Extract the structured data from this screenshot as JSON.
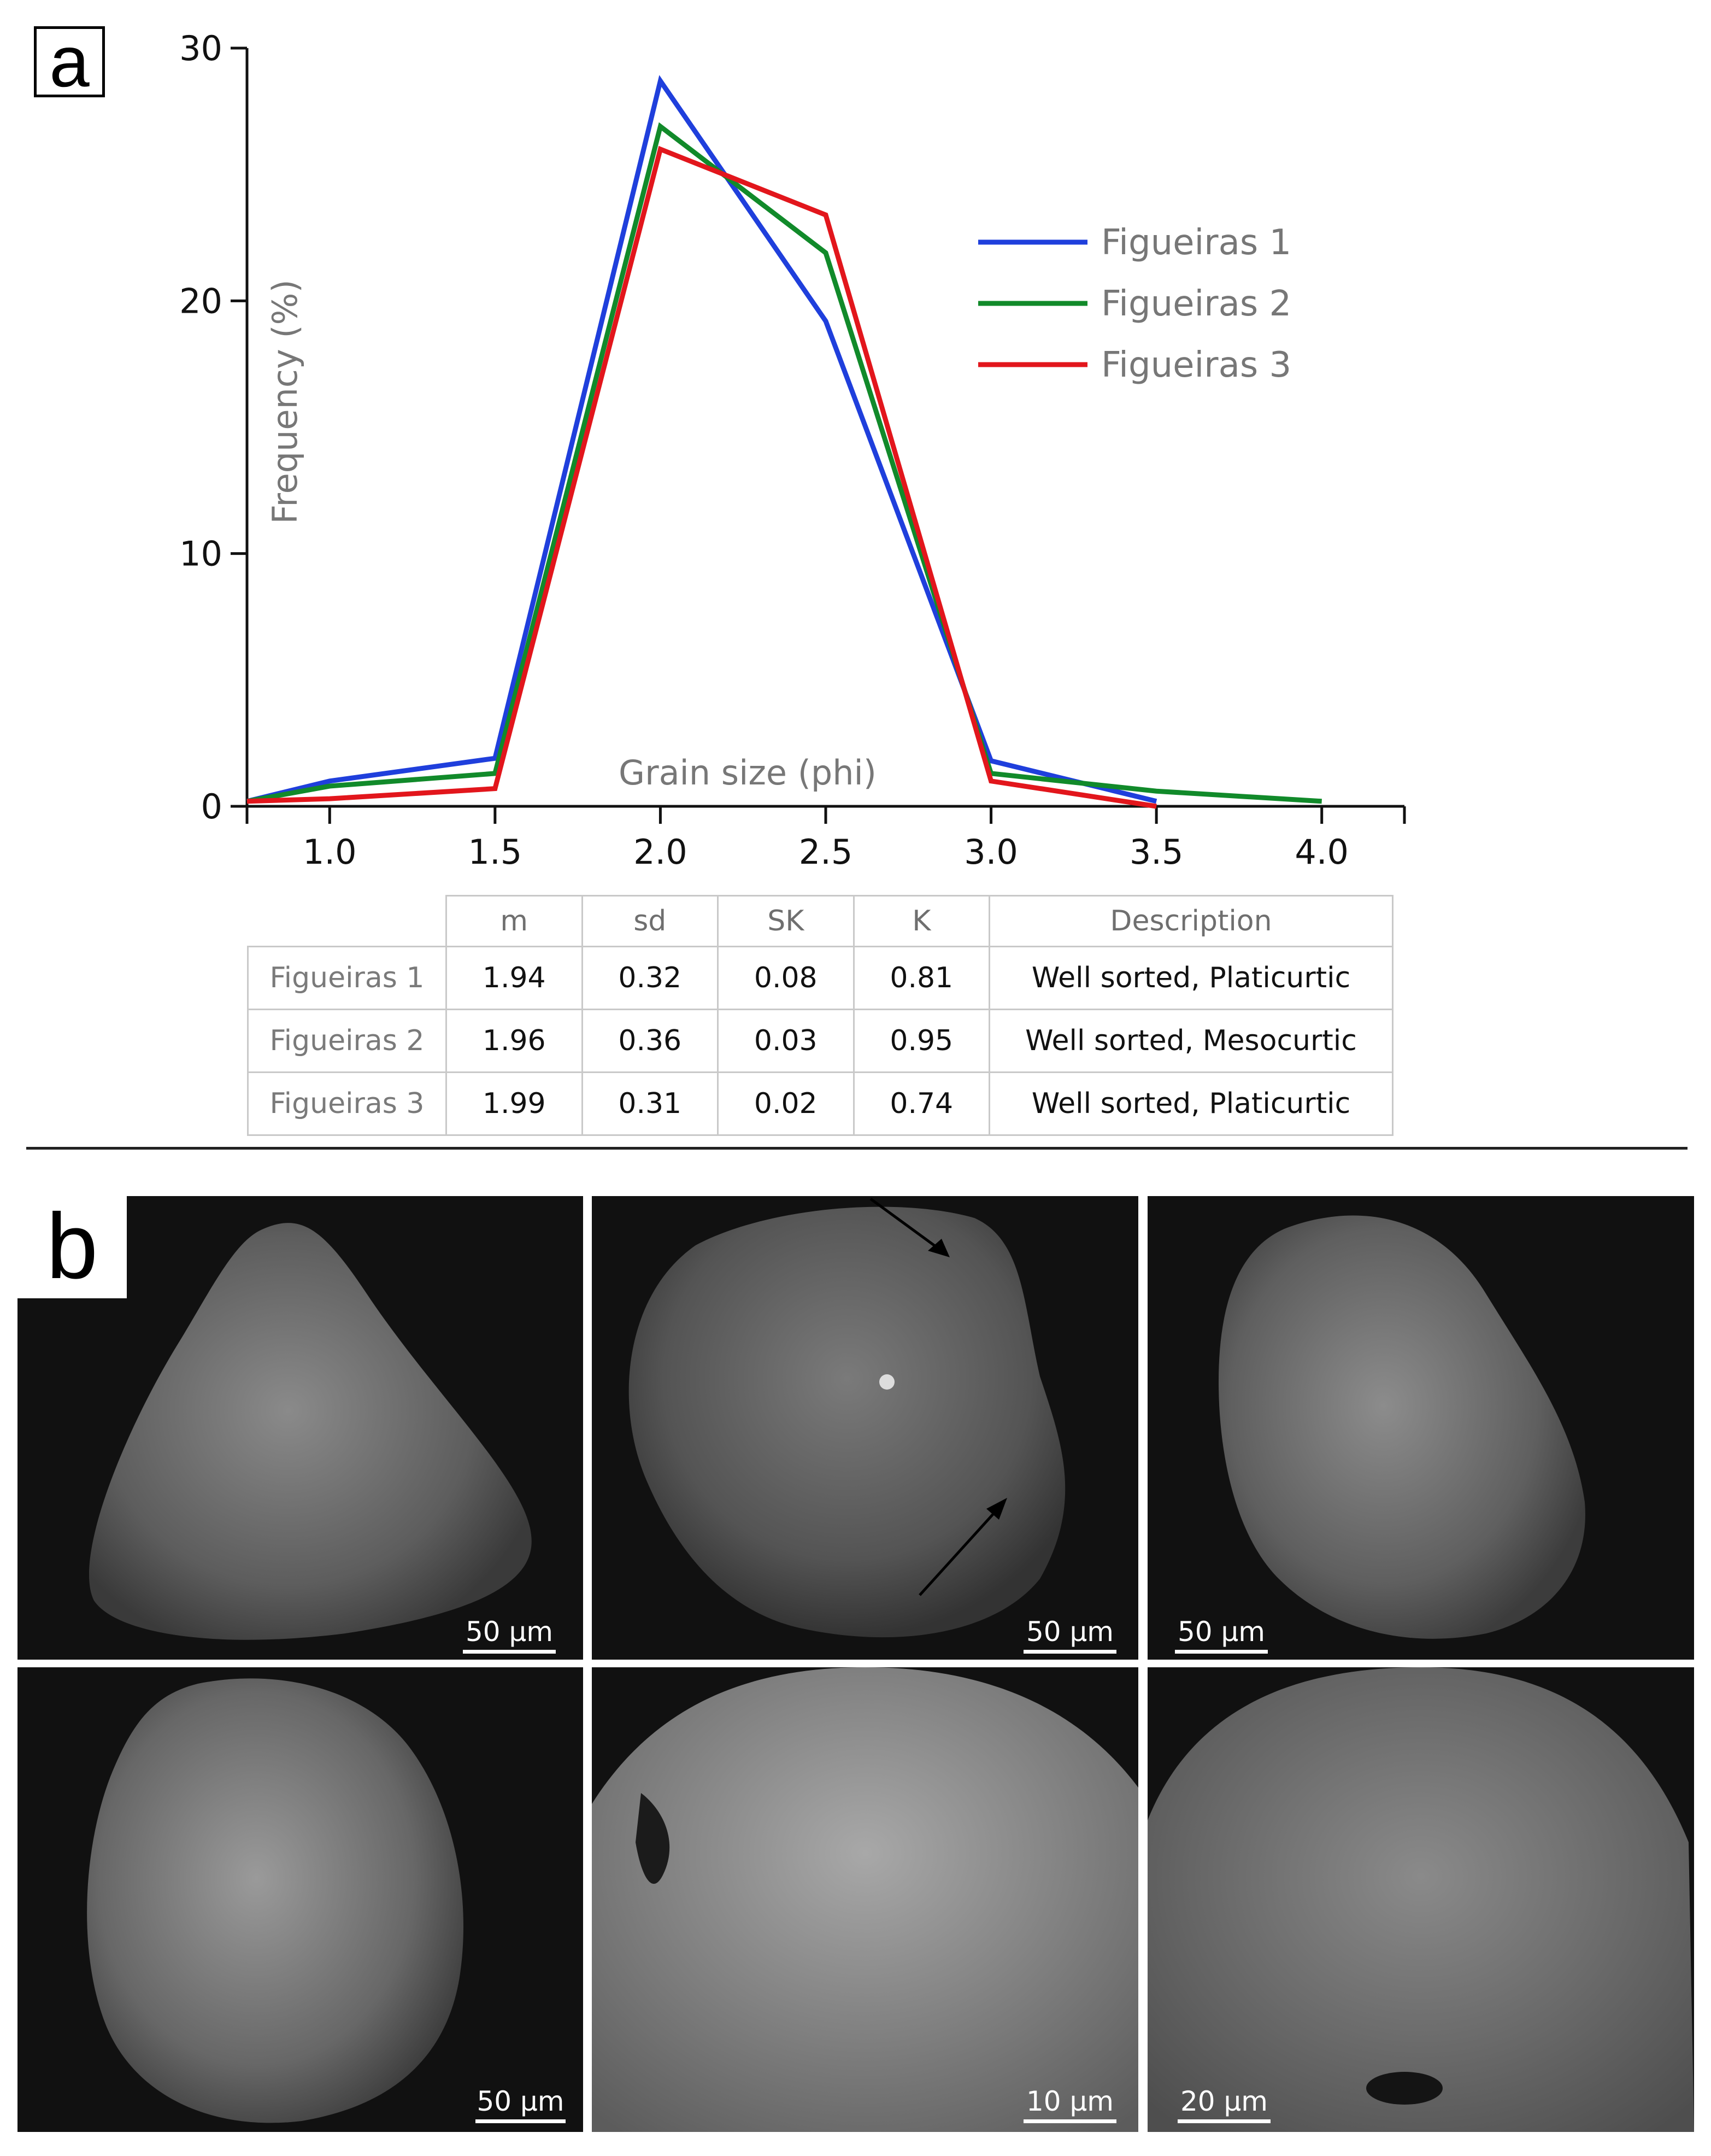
{
  "panels": {
    "a_label": "a",
    "b_label": "b"
  },
  "chart_data": {
    "type": "line",
    "title": "",
    "xlabel": "Grain size (phi)",
    "ylabel": "Frequency (%)",
    "xlim": [
      0.75,
      4.25
    ],
    "ylim": [
      0,
      30
    ],
    "x_ticks": [
      "1.0",
      "1.5",
      "2.0",
      "2.5",
      "3.0",
      "3.5",
      "4.0"
    ],
    "x_tick_values": [
      1.0,
      1.5,
      2.0,
      2.5,
      3.0,
      3.5,
      4.0
    ],
    "y_ticks": [
      "0",
      "10",
      "20",
      "30"
    ],
    "y_tick_values": [
      0,
      10,
      20,
      30
    ],
    "legend_position": "top-right",
    "grid": false,
    "series": [
      {
        "name": "Figueiras 1",
        "color": "#1f3fdc",
        "points": [
          [
            0.75,
            0.2
          ],
          [
            1.0,
            1.0
          ],
          [
            1.5,
            1.9
          ],
          [
            2.0,
            28.7
          ],
          [
            2.5,
            19.2
          ],
          [
            3.0,
            1.8
          ],
          [
            3.5,
            0.2
          ]
        ]
      },
      {
        "name": "Figueiras 2",
        "color": "#118a2a",
        "points": [
          [
            0.75,
            0.2
          ],
          [
            1.0,
            0.8
          ],
          [
            1.5,
            1.3
          ],
          [
            2.0,
            26.9
          ],
          [
            2.5,
            21.9
          ],
          [
            3.0,
            1.3
          ],
          [
            3.5,
            0.6
          ],
          [
            4.0,
            0.2
          ]
        ]
      },
      {
        "name": "Figueiras 3",
        "color": "#e2161c",
        "points": [
          [
            0.75,
            0.2
          ],
          [
            1.0,
            0.3
          ],
          [
            1.5,
            0.7
          ],
          [
            2.0,
            26.0
          ],
          [
            2.5,
            23.4
          ],
          [
            3.0,
            1.0
          ],
          [
            3.5,
            0.0
          ]
        ]
      }
    ]
  },
  "table": {
    "headers": [
      "m",
      "sd",
      "SK",
      "K",
      "Description"
    ],
    "rows": [
      {
        "label": "Figueiras 1",
        "m": "1.94",
        "sd": "0.32",
        "SK": "0.08",
        "K": "0.81",
        "desc": "Well sorted, Platicurtic"
      },
      {
        "label": "Figueiras 2",
        "m": "1.96",
        "sd": "0.36",
        "SK": "0.03",
        "K": "0.95",
        "desc": "Well sorted, Mesocurtic"
      },
      {
        "label": "Figueiras 3",
        "m": "1.99",
        "sd": "0.31",
        "SK": "0.02",
        "K": "0.74",
        "desc": "Well sorted, Platicurtic"
      }
    ]
  },
  "sem_images": [
    {
      "scale": "50 μm"
    },
    {
      "scale": "50 μm"
    },
    {
      "scale": "50 μm"
    },
    {
      "scale": "50 μm"
    },
    {
      "scale": "10 μm"
    },
    {
      "scale": "20 μm"
    }
  ]
}
